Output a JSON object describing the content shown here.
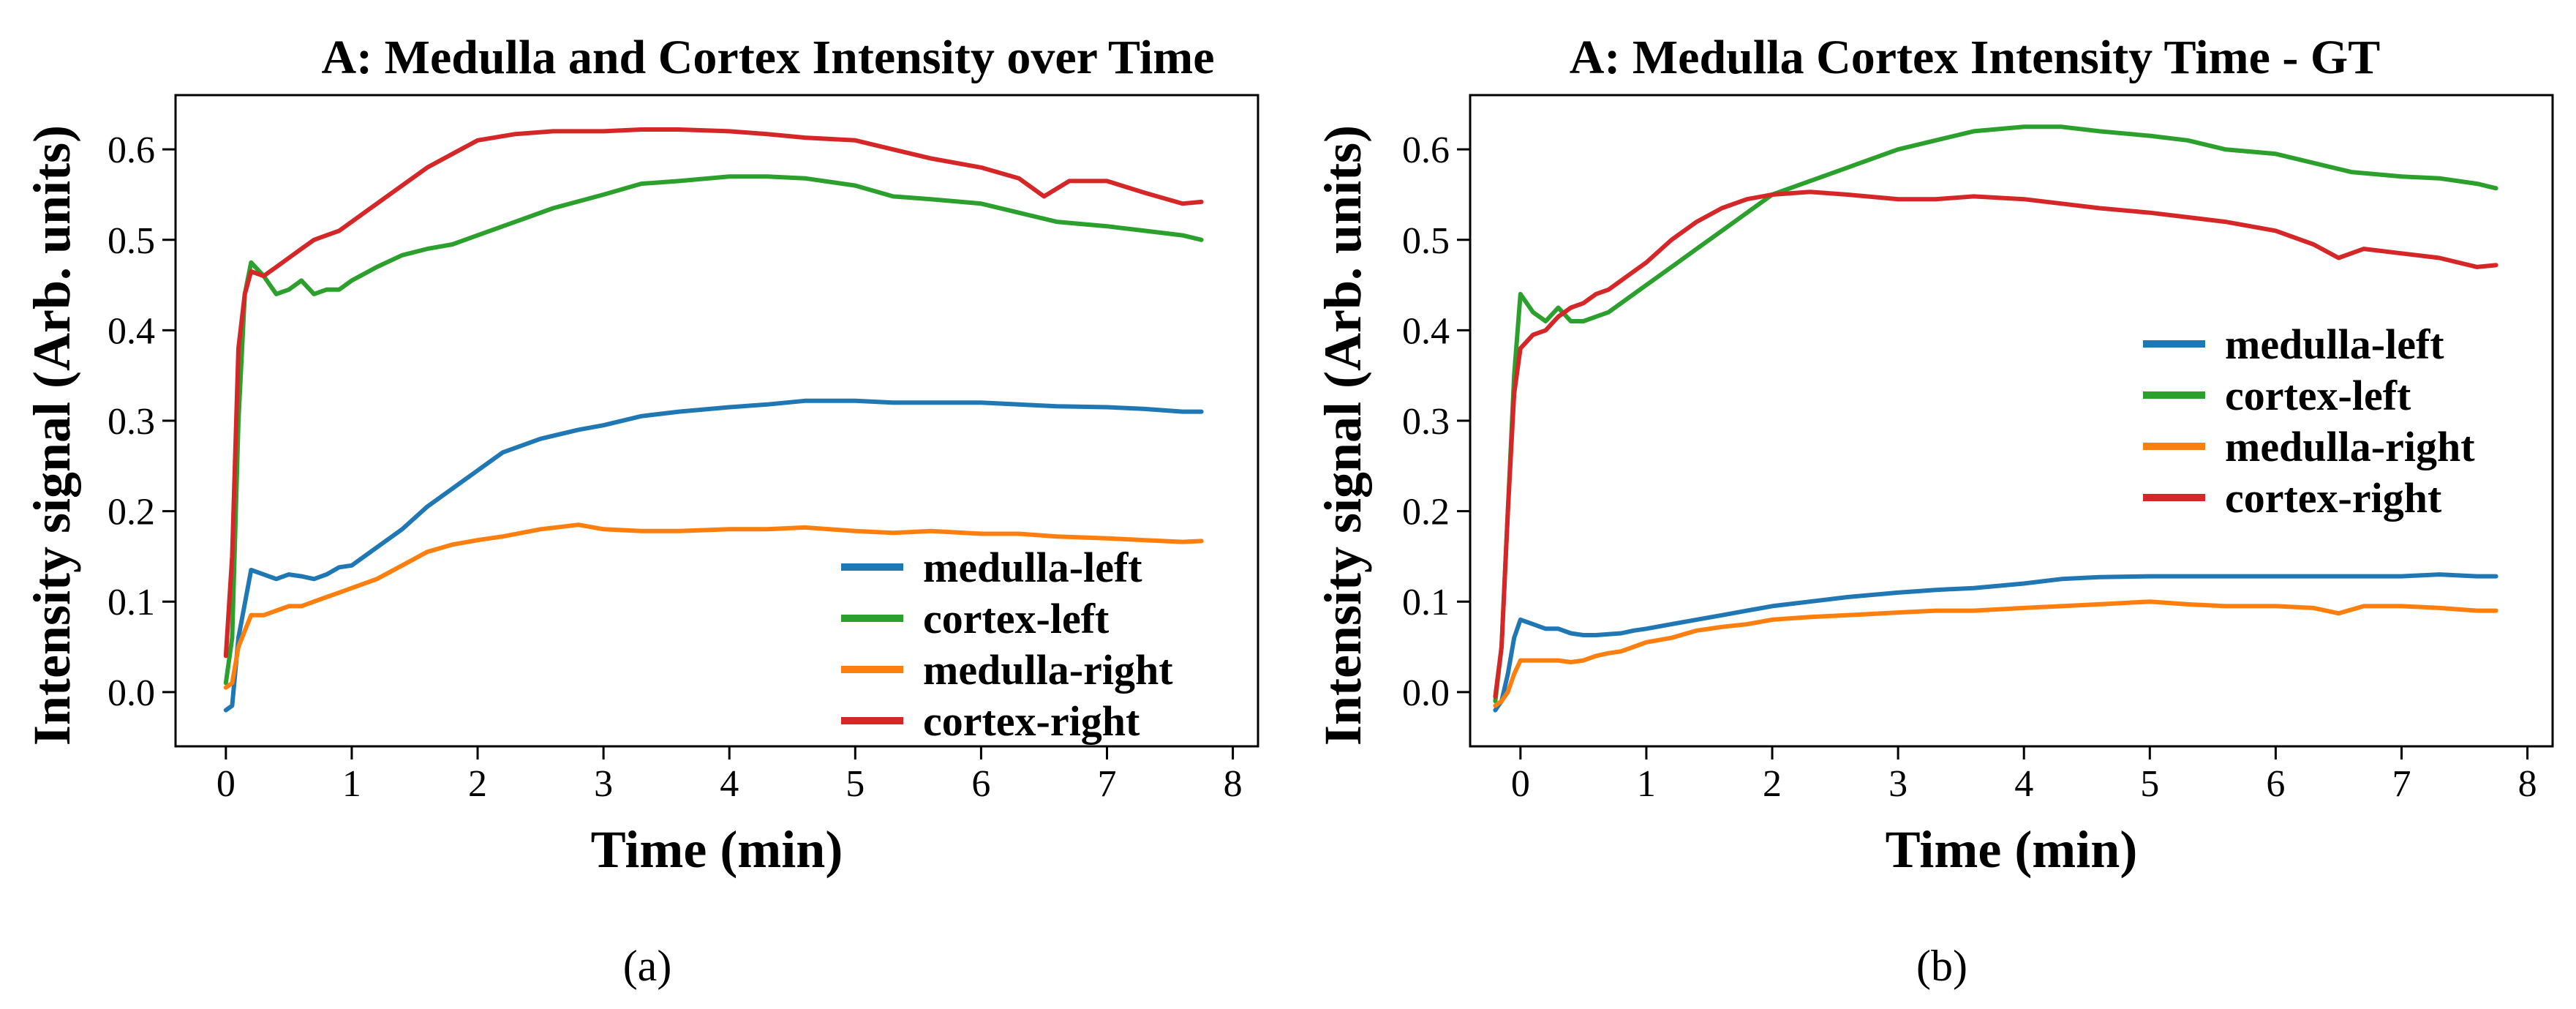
{
  "chart_data": [
    {
      "type": "line",
      "title": "A: Medulla and Cortex Intensity over Time",
      "xlabel": "Time (min)",
      "ylabel": "Intensity signal (Arb. units)",
      "caption": "(a)",
      "xlim": [
        -0.4,
        8.2
      ],
      "ylim": [
        -0.06,
        0.66
      ],
      "xticks": [
        0,
        1,
        2,
        3,
        4,
        5,
        6,
        7,
        8
      ],
      "yticks": [
        0.0,
        0.1,
        0.2,
        0.3,
        0.4,
        0.5,
        0.6
      ],
      "xtick_labels": [
        "0",
        "1",
        "2",
        "3",
        "4",
        "5",
        "6",
        "7",
        "8"
      ],
      "ytick_labels": [
        "0.0",
        "0.1",
        "0.2",
        "0.3",
        "0.4",
        "0.5",
        "0.6"
      ],
      "legend_position": "lower-right",
      "grid": false,
      "series": [
        {
          "name": "medulla-left",
          "color": "#1f77b4",
          "x": [
            0,
            0.05,
            0.1,
            0.2,
            0.3,
            0.4,
            0.5,
            0.6,
            0.7,
            0.8,
            0.9,
            1.0,
            1.2,
            1.4,
            1.6,
            1.8,
            2.0,
            2.2,
            2.5,
            2.8,
            3.0,
            3.3,
            3.6,
            4.0,
            4.3,
            4.6,
            5.0,
            5.3,
            5.6,
            6.0,
            6.3,
            6.6,
            7.0,
            7.3,
            7.6,
            7.75
          ],
          "y": [
            -0.02,
            -0.015,
            0.06,
            0.135,
            0.13,
            0.125,
            0.13,
            0.128,
            0.125,
            0.13,
            0.138,
            0.14,
            0.16,
            0.18,
            0.205,
            0.225,
            0.245,
            0.265,
            0.28,
            0.29,
            0.295,
            0.305,
            0.31,
            0.315,
            0.318,
            0.322,
            0.322,
            0.32,
            0.32,
            0.32,
            0.318,
            0.316,
            0.315,
            0.313,
            0.31,
            0.31
          ]
        },
        {
          "name": "cortex-left",
          "color": "#2ca02c",
          "x": [
            0,
            0.05,
            0.1,
            0.15,
            0.2,
            0.3,
            0.4,
            0.5,
            0.6,
            0.7,
            0.8,
            0.9,
            1.0,
            1.2,
            1.4,
            1.6,
            1.8,
            2.0,
            2.3,
            2.6,
            3.0,
            3.3,
            3.6,
            4.0,
            4.3,
            4.6,
            5.0,
            5.3,
            5.6,
            6.0,
            6.3,
            6.6,
            7.0,
            7.3,
            7.6,
            7.75
          ],
          "y": [
            0.01,
            0.06,
            0.3,
            0.44,
            0.475,
            0.46,
            0.44,
            0.445,
            0.455,
            0.44,
            0.445,
            0.445,
            0.455,
            0.47,
            0.483,
            0.49,
            0.495,
            0.505,
            0.52,
            0.535,
            0.55,
            0.562,
            0.565,
            0.57,
            0.57,
            0.568,
            0.56,
            0.548,
            0.545,
            0.54,
            0.53,
            0.52,
            0.515,
            0.51,
            0.505,
            0.5
          ]
        },
        {
          "name": "medulla-right",
          "color": "#ff7f0e",
          "x": [
            0,
            0.05,
            0.1,
            0.2,
            0.3,
            0.4,
            0.5,
            0.6,
            0.7,
            0.8,
            0.9,
            1.0,
            1.2,
            1.4,
            1.6,
            1.8,
            2.0,
            2.2,
            2.5,
            2.8,
            3.0,
            3.3,
            3.6,
            4.0,
            4.3,
            4.6,
            5.0,
            5.3,
            5.6,
            6.0,
            6.3,
            6.6,
            7.0,
            7.3,
            7.6,
            7.75
          ],
          "y": [
            0.005,
            0.01,
            0.05,
            0.085,
            0.085,
            0.09,
            0.095,
            0.095,
            0.1,
            0.105,
            0.11,
            0.115,
            0.125,
            0.14,
            0.155,
            0.163,
            0.168,
            0.172,
            0.18,
            0.185,
            0.18,
            0.178,
            0.178,
            0.18,
            0.18,
            0.182,
            0.178,
            0.176,
            0.178,
            0.175,
            0.175,
            0.172,
            0.17,
            0.168,
            0.166,
            0.167
          ]
        },
        {
          "name": "cortex-right",
          "color": "#d62728",
          "x": [
            0,
            0.05,
            0.1,
            0.15,
            0.2,
            0.3,
            0.4,
            0.5,
            0.6,
            0.7,
            0.8,
            0.9,
            1.0,
            1.2,
            1.4,
            1.6,
            1.8,
            2.0,
            2.3,
            2.6,
            3.0,
            3.3,
            3.6,
            4.0,
            4.3,
            4.6,
            5.0,
            5.3,
            5.6,
            6.0,
            6.3,
            6.5,
            6.7,
            7.0,
            7.3,
            7.6,
            7.75
          ],
          "y": [
            0.04,
            0.15,
            0.38,
            0.44,
            0.465,
            0.46,
            0.47,
            0.48,
            0.49,
            0.5,
            0.505,
            0.51,
            0.52,
            0.54,
            0.56,
            0.58,
            0.595,
            0.61,
            0.617,
            0.62,
            0.62,
            0.622,
            0.622,
            0.62,
            0.617,
            0.613,
            0.61,
            0.6,
            0.59,
            0.58,
            0.568,
            0.548,
            0.565,
            0.565,
            0.552,
            0.54,
            0.542
          ]
        }
      ]
    },
    {
      "type": "line",
      "title": "A: Medulla Cortex Intensity Time - GT",
      "xlabel": "Time (min)",
      "ylabel": "Intensity signal (Arb. units)",
      "caption": "(b)",
      "xlim": [
        -0.4,
        8.2
      ],
      "ylim": [
        -0.06,
        0.66
      ],
      "xticks": [
        0,
        1,
        2,
        3,
        4,
        5,
        6,
        7,
        8
      ],
      "yticks": [
        0.0,
        0.1,
        0.2,
        0.3,
        0.4,
        0.5,
        0.6
      ],
      "xtick_labels": [
        "0",
        "1",
        "2",
        "3",
        "4",
        "5",
        "6",
        "7",
        "8"
      ],
      "ytick_labels": [
        "0.0",
        "0.1",
        "0.2",
        "0.3",
        "0.4",
        "0.5",
        "0.6"
      ],
      "legend_position": "center-right",
      "grid": false,
      "series": [
        {
          "name": "medulla-left",
          "color": "#1f77b4",
          "x": [
            -0.2,
            -0.15,
            -0.1,
            -0.05,
            0,
            0.1,
            0.2,
            0.3,
            0.4,
            0.5,
            0.6,
            0.7,
            0.8,
            0.9,
            1.0,
            1.2,
            1.4,
            1.6,
            1.8,
            2.0,
            2.3,
            2.6,
            3.0,
            3.3,
            3.6,
            4.0,
            4.3,
            4.6,
            5.0,
            5.3,
            5.6,
            6.0,
            6.3,
            6.6,
            7.0,
            7.3,
            7.6,
            7.75
          ],
          "y": [
            -0.02,
            -0.01,
            0.02,
            0.06,
            0.08,
            0.075,
            0.07,
            0.07,
            0.065,
            0.063,
            0.063,
            0.064,
            0.065,
            0.068,
            0.07,
            0.075,
            0.08,
            0.085,
            0.09,
            0.095,
            0.1,
            0.105,
            0.11,
            0.113,
            0.115,
            0.12,
            0.125,
            0.127,
            0.128,
            0.128,
            0.128,
            0.128,
            0.128,
            0.128,
            0.128,
            0.13,
            0.128,
            0.128
          ]
        },
        {
          "name": "cortex-left",
          "color": "#2ca02c",
          "x": [
            -0.2,
            -0.15,
            -0.1,
            -0.05,
            0,
            0.1,
            0.2,
            0.3,
            0.4,
            0.5,
            0.6,
            0.7,
            0.8,
            0.9,
            1.0,
            1.2,
            1.4,
            1.6,
            1.8,
            2.0,
            2.3,
            2.6,
            3.0,
            3.3,
            3.6,
            4.0,
            4.3,
            4.6,
            5.0,
            5.3,
            5.6,
            6.0,
            6.3,
            6.6,
            7.0,
            7.3,
            7.6,
            7.75
          ],
          "y": [
            -0.01,
            0.05,
            0.2,
            0.35,
            0.44,
            0.42,
            0.41,
            0.425,
            0.41,
            0.41,
            0.415,
            0.42,
            0.43,
            0.44,
            0.45,
            0.47,
            0.49,
            0.51,
            0.53,
            0.55,
            0.565,
            0.58,
            0.6,
            0.61,
            0.62,
            0.625,
            0.625,
            0.62,
            0.615,
            0.61,
            0.6,
            0.595,
            0.585,
            0.575,
            0.57,
            0.568,
            0.562,
            0.557
          ]
        },
        {
          "name": "medulla-right",
          "color": "#ff7f0e",
          "x": [
            -0.2,
            -0.15,
            -0.1,
            -0.05,
            0,
            0.1,
            0.2,
            0.3,
            0.4,
            0.5,
            0.6,
            0.7,
            0.8,
            0.9,
            1.0,
            1.2,
            1.4,
            1.6,
            1.8,
            2.0,
            2.3,
            2.6,
            3.0,
            3.3,
            3.6,
            4.0,
            4.3,
            4.6,
            5.0,
            5.3,
            5.6,
            6.0,
            6.3,
            6.5,
            6.7,
            7.0,
            7.3,
            7.6,
            7.75
          ],
          "y": [
            -0.015,
            -0.01,
            0.0,
            0.02,
            0.035,
            0.035,
            0.035,
            0.035,
            0.033,
            0.035,
            0.04,
            0.043,
            0.045,
            0.05,
            0.055,
            0.06,
            0.068,
            0.072,
            0.075,
            0.08,
            0.083,
            0.085,
            0.088,
            0.09,
            0.09,
            0.093,
            0.095,
            0.097,
            0.1,
            0.097,
            0.095,
            0.095,
            0.093,
            0.087,
            0.095,
            0.095,
            0.093,
            0.09,
            0.09
          ]
        },
        {
          "name": "cortex-right",
          "color": "#d62728",
          "x": [
            -0.2,
            -0.15,
            -0.1,
            -0.05,
            0,
            0.1,
            0.2,
            0.3,
            0.4,
            0.5,
            0.6,
            0.7,
            0.8,
            0.9,
            1.0,
            1.2,
            1.4,
            1.6,
            1.8,
            2.0,
            2.3,
            2.6,
            3.0,
            3.3,
            3.6,
            4.0,
            4.3,
            4.6,
            5.0,
            5.3,
            5.6,
            6.0,
            6.3,
            6.5,
            6.7,
            7.0,
            7.3,
            7.6,
            7.75
          ],
          "y": [
            -0.005,
            0.05,
            0.2,
            0.33,
            0.38,
            0.395,
            0.4,
            0.415,
            0.425,
            0.43,
            0.44,
            0.445,
            0.455,
            0.465,
            0.475,
            0.5,
            0.52,
            0.535,
            0.545,
            0.55,
            0.553,
            0.55,
            0.545,
            0.545,
            0.548,
            0.545,
            0.54,
            0.535,
            0.53,
            0.525,
            0.52,
            0.51,
            0.495,
            0.48,
            0.49,
            0.485,
            0.48,
            0.47,
            0.472
          ]
        }
      ]
    }
  ]
}
